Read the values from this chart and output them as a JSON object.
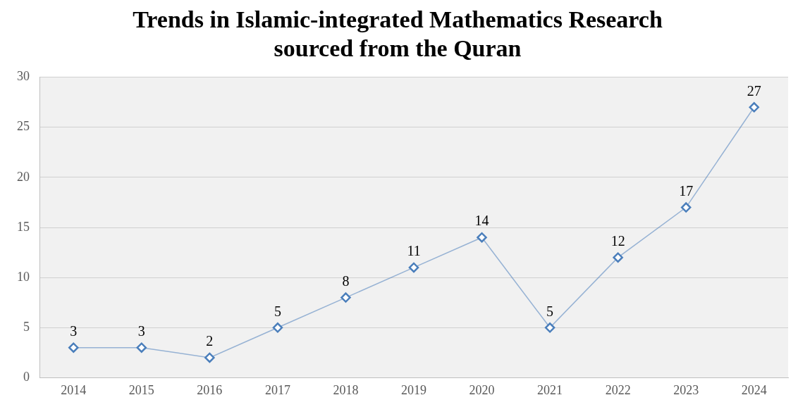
{
  "chart_data": {
    "type": "line",
    "title": "Trends in Islamic-integrated Mathematics Research\nsourced from the Quran",
    "categories": [
      "2014",
      "2015",
      "2016",
      "2017",
      "2018",
      "2019",
      "2020",
      "2021",
      "2022",
      "2023",
      "2024"
    ],
    "series": [
      {
        "color": "#4a7ebb",
        "values": [
          3,
          3,
          2,
          5,
          8,
          11,
          14,
          5,
          12,
          17,
          27
        ]
      }
    ],
    "ylim": [
      0,
      30
    ],
    "yticks": [
      0,
      5,
      10,
      15,
      20,
      25,
      30
    ],
    "grid": "y",
    "legend": false,
    "marker": "diamond",
    "line_style": "solid",
    "data_labels": true
  }
}
